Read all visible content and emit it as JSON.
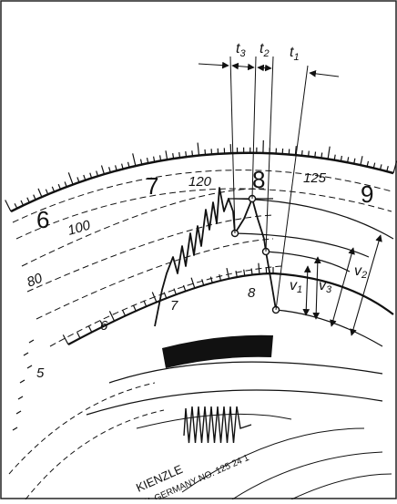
{
  "hour_numbers": [
    "6",
    "7",
    "8",
    "9"
  ],
  "speed_labels": [
    "120",
    "125",
    "100",
    "80"
  ],
  "inner_labels": [
    "6",
    "7",
    "8",
    "5"
  ],
  "time_markers": [
    {
      "sym": "t",
      "sub": "3"
    },
    {
      "sym": "t",
      "sub": "2"
    },
    {
      "sym": "t",
      "sub": "1"
    }
  ],
  "velocity_markers": [
    {
      "sym": "v",
      "sub": "1"
    },
    {
      "sym": "v",
      "sub": "3"
    },
    {
      "sym": "v",
      "sub": "2"
    }
  ],
  "brand": "KIENZLE",
  "origin_text": "W. GERMANY  NO. 125 24 1",
  "colors": {
    "ink": "#111111",
    "background": "#ffffff"
  }
}
